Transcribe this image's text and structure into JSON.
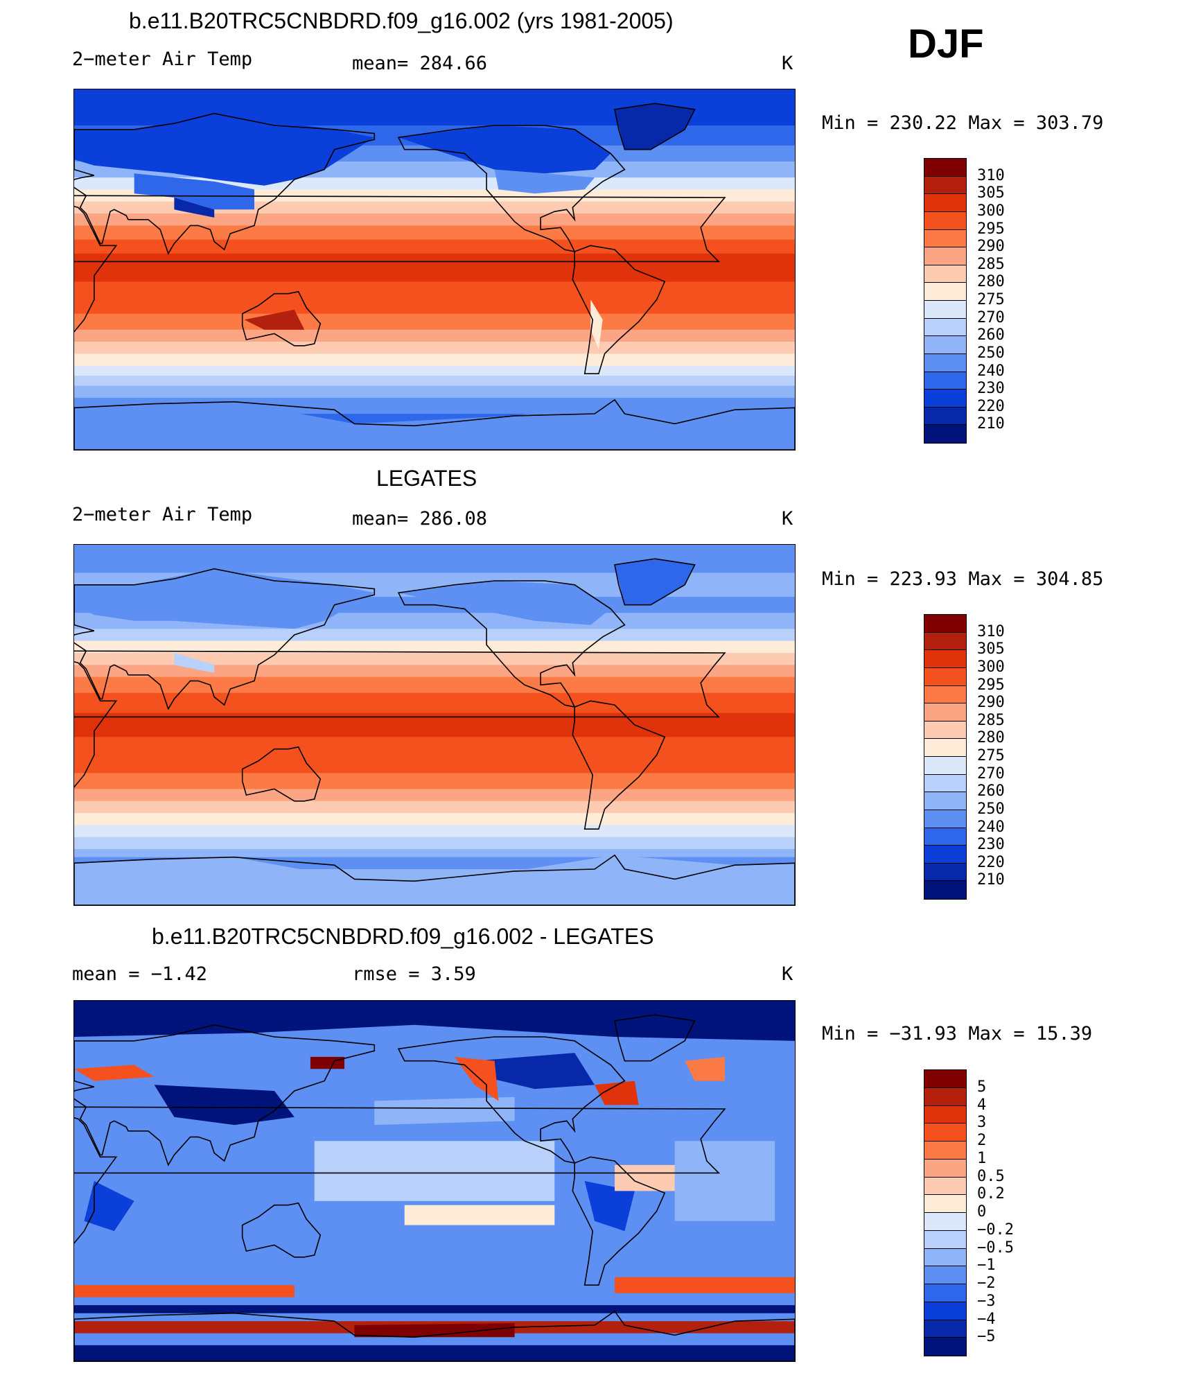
{
  "season": "DJF",
  "panels": [
    {
      "title": "b.e11.B20TRC5CNBDRD.f09_g16.002 (yrs 1981-2005)",
      "left_label": "2−meter Air Temp",
      "mid_label": "mean=  284.66",
      "units": "K",
      "minmax": "Min  =  230.22  Max  =  303.79",
      "kind": "model",
      "colorbar_labels": [
        "310",
        "305",
        "300",
        "295",
        "290",
        "285",
        "280",
        "275",
        "270",
        "260",
        "250",
        "240",
        "230",
        "220",
        "210"
      ]
    },
    {
      "title": "LEGATES",
      "left_label": "2−meter Air Temp",
      "mid_label": "mean=  286.08",
      "units": "K",
      "minmax": "Min  =  223.93  Max  =  304.85",
      "kind": "obs",
      "colorbar_labels": [
        "310",
        "305",
        "300",
        "295",
        "290",
        "285",
        "280",
        "275",
        "270",
        "260",
        "250",
        "240",
        "230",
        "220",
        "210"
      ]
    },
    {
      "title": "b.e11.B20TRC5CNBDRD.f09_g16.002 - LEGATES",
      "left_label": "mean =   −1.42",
      "mid_label": "rmse =    3.59",
      "units": "K",
      "minmax": "Min  =  −31.93  Max  =   15.39",
      "kind": "diff",
      "colorbar_labels": [
        "5",
        "4",
        "3",
        "2",
        "1",
        "0.5",
        "0.2",
        "0",
        "−0.2",
        "−0.5",
        "−1",
        "−2",
        "−3",
        "−4",
        "−5"
      ]
    }
  ],
  "colors": {
    "temp_scale": [
      "#7f0000",
      "#b3200e",
      "#e0330b",
      "#f4511e",
      "#fb7a46",
      "#fca584",
      "#fdcbb1",
      "#feebd8",
      "#dbe8fb",
      "#b8d0fa",
      "#8fb4f7",
      "#5d90f2",
      "#2f67ea",
      "#0b3fd9",
      "#0628a9",
      "#00137a"
    ],
    "diff_scale": [
      "#7f0000",
      "#b3200e",
      "#e0330b",
      "#f4511e",
      "#fb7a46",
      "#fca584",
      "#fdcbb1",
      "#feebd8",
      "#dbe8fb",
      "#b8d0fa",
      "#8fb4f7",
      "#5d90f2",
      "#2f67ea",
      "#0b3fd9",
      "#0628a9",
      "#00137a"
    ],
    "coastline": "#000000"
  }
}
